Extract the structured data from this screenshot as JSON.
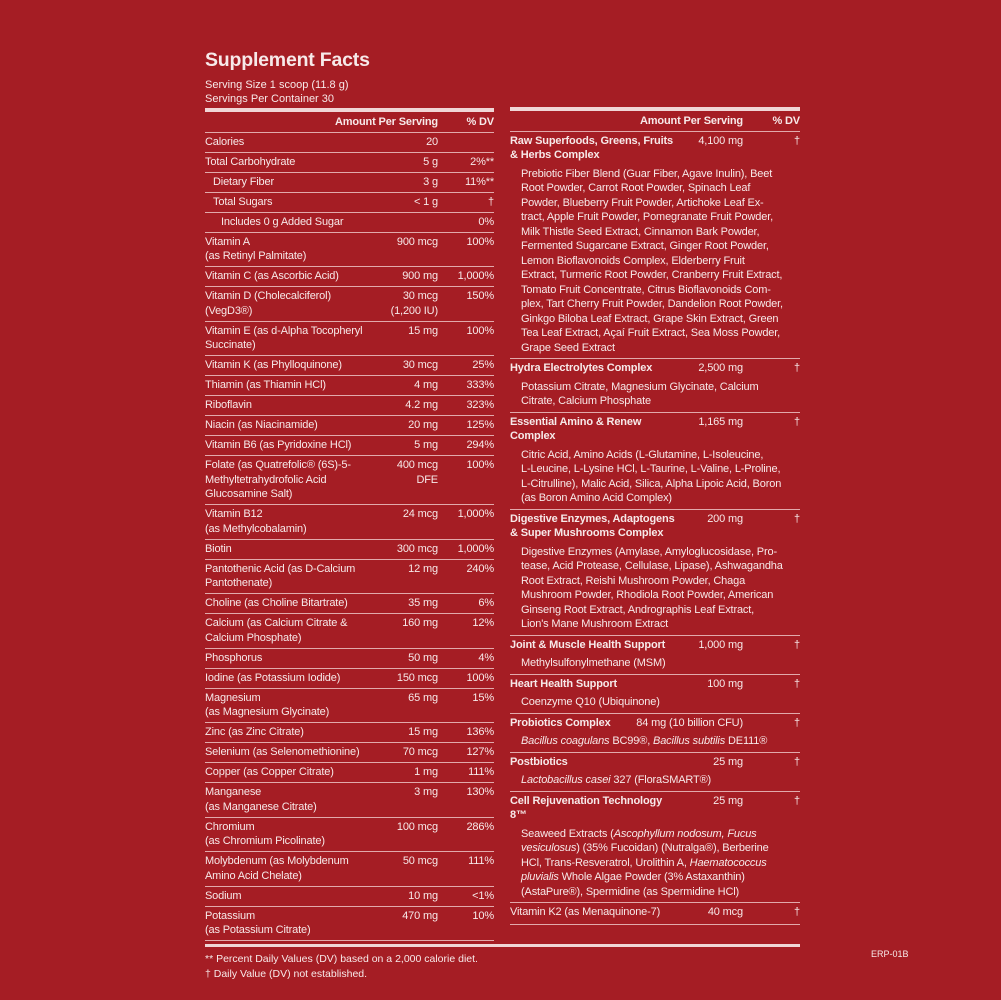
{
  "title": "Supplement Facts",
  "serving_size": "Serving Size 1 scoop (11.8 g)",
  "servings_per_container": "Servings Per Container 30",
  "header": {
    "amount": "Amount Per Serving",
    "dv": "% DV"
  },
  "left_rows": [
    {
      "name": [
        "Calories"
      ],
      "amount": [
        "20"
      ],
      "dv": ""
    },
    {
      "name": [
        "Total Carbohydrate"
      ],
      "amount": [
        "5 g"
      ],
      "dv": "2%**"
    },
    {
      "name": [
        "Dietary Fiber"
      ],
      "amount": [
        "3 g"
      ],
      "dv": "11%**",
      "indent": 1
    },
    {
      "name": [
        "Total Sugars"
      ],
      "amount": [
        "< 1 g"
      ],
      "dv": "†",
      "indent": 1
    },
    {
      "name": [
        "Includes 0 g Added Sugar"
      ],
      "amount": [
        ""
      ],
      "dv": "0%",
      "indent": 2
    },
    {
      "name": [
        "Vitamin A",
        "(as Retinyl Palmitate)"
      ],
      "amount": [
        "900 mcg"
      ],
      "dv": "100%"
    },
    {
      "name": [
        "Vitamin C (as Ascorbic Acid)"
      ],
      "amount": [
        "900 mg"
      ],
      "dv": "1,000%"
    },
    {
      "name": [
        "Vitamin D (Cholecalciferol)",
        "(VegD3®)"
      ],
      "amount": [
        "30 mcg",
        "(1,200 IU)"
      ],
      "dv": "150%"
    },
    {
      "name": [
        "Vitamin E (as d-Alpha Tocopheryl",
        "Succinate)"
      ],
      "amount": [
        "15 mg"
      ],
      "dv": "100%"
    },
    {
      "name": [
        "Vitamin K (as Phylloquinone)"
      ],
      "amount": [
        "30 mcg"
      ],
      "dv": "25%"
    },
    {
      "name": [
        "Thiamin (as Thiamin HCl)"
      ],
      "amount": [
        "4 mg"
      ],
      "dv": "333%"
    },
    {
      "name": [
        "Riboflavin"
      ],
      "amount": [
        "4.2 mg"
      ],
      "dv": "323%"
    },
    {
      "name": [
        "Niacin (as Niacinamide)"
      ],
      "amount": [
        "20 mg"
      ],
      "dv": "125%"
    },
    {
      "name": [
        "Vitamin B6 (as Pyridoxine HCl)"
      ],
      "amount": [
        "5 mg"
      ],
      "dv": "294%"
    },
    {
      "name": [
        "Folate (as Quatrefolic® (6S)-5-",
        "Methyltetrahydrofolic Acid",
        "Glucosamine Salt)"
      ],
      "amount": [
        "400 mcg",
        "DFE"
      ],
      "dv": "100%"
    },
    {
      "name": [
        "Vitamin B12",
        "(as Methylcobalamin)"
      ],
      "amount": [
        "24 mcg"
      ],
      "dv": "1,000%"
    },
    {
      "name": [
        "Biotin"
      ],
      "amount": [
        "300 mcg"
      ],
      "dv": "1,000%"
    },
    {
      "name": [
        "Pantothenic Acid (as D-Calcium",
        "Pantothenate)"
      ],
      "amount": [
        "12 mg"
      ],
      "dv": "240%"
    },
    {
      "name": [
        "Choline (as Choline Bitartrate)"
      ],
      "amount": [
        "35 mg"
      ],
      "dv": "6%"
    },
    {
      "name": [
        "Calcium (as Calcium Citrate &",
        "Calcium Phosphate)"
      ],
      "amount": [
        "160 mg"
      ],
      "dv": "12%"
    },
    {
      "name": [
        "Phosphorus"
      ],
      "amount": [
        "50 mg"
      ],
      "dv": "4%"
    },
    {
      "name": [
        "Iodine (as Potassium Iodide)"
      ],
      "amount": [
        "150 mcg"
      ],
      "dv": "100%"
    },
    {
      "name": [
        "Magnesium",
        "(as Magnesium Glycinate)"
      ],
      "amount": [
        "65 mg"
      ],
      "dv": "15%"
    },
    {
      "name": [
        "Zinc (as Zinc Citrate)"
      ],
      "amount": [
        "15 mg"
      ],
      "dv": "136%"
    },
    {
      "name": [
        "Selenium (as Selenomethionine)"
      ],
      "amount": [
        "70 mcg"
      ],
      "dv": "127%"
    },
    {
      "name": [
        "Copper (as Copper Citrate)"
      ],
      "amount": [
        "1 mg"
      ],
      "dv": "111%"
    },
    {
      "name": [
        "Manganese",
        "(as Manganese Citrate)"
      ],
      "amount": [
        "3 mg"
      ],
      "dv": "130%"
    },
    {
      "name": [
        "Chromium",
        "(as Chromium Picolinate)"
      ],
      "amount": [
        "100 mcg"
      ],
      "dv": "286%"
    },
    {
      "name": [
        "Molybdenum (as Molybdenum",
        "Amino Acid Chelate)"
      ],
      "amount": [
        "50 mcg"
      ],
      "dv": "111%"
    },
    {
      "name": [
        "Sodium"
      ],
      "amount": [
        "10 mg"
      ],
      "dv": "<1%"
    },
    {
      "name": [
        "Potassium",
        "(as Potassium Citrate)"
      ],
      "amount": [
        "470 mg"
      ],
      "dv": "10%"
    }
  ],
  "right_blocks": [
    {
      "name": [
        "Raw Superfoods, Greens, Fruits",
        "& Herbs Complex"
      ],
      "amount": "4,100 mg",
      "dv": "†",
      "desc": [
        [
          "Prebiotic Fiber Blend (Guar Fiber, Agave Inulin), Beet"
        ],
        [
          "Root Powder, Carrot Root Powder, Spinach Leaf"
        ],
        [
          "Powder, Blueberry Fruit Powder, Artichoke Leaf Ex-"
        ],
        [
          "tract, Apple Fruit Powder, Pomegranate Fruit Powder,"
        ],
        [
          "Milk Thistle Seed Extract, Cinnamon Bark Powder,"
        ],
        [
          "Fermented Sugarcane Extract, Ginger Root Powder,"
        ],
        [
          "Lemon Bioflavonoids Complex, Elderberry Fruit"
        ],
        [
          "Extract, Turmeric Root Powder, Cranberry Fruit Extract,"
        ],
        [
          "Tomato Fruit Concentrate, Citrus Bioflavonoids Com-"
        ],
        [
          "plex, Tart Cherry Fruit Powder, Dandelion Root Powder,"
        ],
        [
          "Ginkgo Biloba Leaf Extract, Grape Skin Extract, Green"
        ],
        [
          "Tea Leaf Extract, Açaí Fruit Extract, Sea Moss Powder,"
        ],
        [
          "Grape Seed Extract"
        ]
      ]
    },
    {
      "name": [
        "Hydra Electrolytes Complex"
      ],
      "amount": "2,500 mg",
      "dv": "†",
      "desc": [
        [
          "Potassium Citrate, Magnesium Glycinate, Calcium"
        ],
        [
          "Citrate, Calcium Phosphate"
        ]
      ]
    },
    {
      "name": [
        "Essential Amino & Renew Complex"
      ],
      "amount": "1,165 mg",
      "dv": "†",
      "desc": [
        [
          "Citric Acid, Amino Acids (L-Glutamine, L-Isoleucine,"
        ],
        [
          "L-Leucine, L-Lysine HCl, L-Taurine, L-Valine, L-Proline,"
        ],
        [
          "L-Citrulline), Malic Acid, Silica, Alpha Lipoic Acid, Boron"
        ],
        [
          "(as Boron Amino Acid Complex)"
        ]
      ]
    },
    {
      "name": [
        "Digestive Enzymes, Adaptogens",
        "& Super Mushrooms Complex"
      ],
      "amount": "200 mg",
      "dv": "†",
      "desc": [
        [
          "Digestive Enzymes (Amylase, Amyloglucosidase, Pro-"
        ],
        [
          "tease, Acid Protease, Cellulase, Lipase), Ashwagandha"
        ],
        [
          "Root Extract, Reishi Mushroom Powder, Chaga"
        ],
        [
          "Mushroom Powder, Rhodiola Root Powder, American"
        ],
        [
          "Ginseng Root Extract, Andrographis Leaf Extract,"
        ],
        [
          "Lion's Mane Mushroom Extract"
        ]
      ]
    },
    {
      "name": [
        "Joint & Muscle Health Support"
      ],
      "amount": "1,000 mg",
      "dv": "†",
      "desc": [
        [
          "Methylsulfonylmethane (MSM)"
        ]
      ]
    },
    {
      "name": [
        "Heart Health Support"
      ],
      "amount": "100 mg",
      "dv": "†",
      "desc": [
        [
          "Coenzyme Q10 (Ubiquinone)"
        ]
      ]
    },
    {
      "name": [
        "Probiotics Complex"
      ],
      "amount": "84 mg (10 billion CFU)",
      "dv": "†",
      "desc": [
        [
          "*Bacillus coagulans",
          " BC99®, ",
          "*Bacillus subtilis",
          " DE111®"
        ]
      ]
    },
    {
      "name": [
        "Postbiotics"
      ],
      "amount": "25 mg",
      "dv": "†",
      "desc": [
        [
          "*Lactobacillus casei",
          " 327 (FloraSMART®)"
        ]
      ]
    },
    {
      "name": [
        "Cell Rejuvenation Technology 8™"
      ],
      "amount": "25 mg",
      "dv": "†",
      "desc": [
        [
          "Seaweed Extracts (",
          "*Ascophyllum nodosum, Fucus"
        ],
        [
          "*vesiculosus",
          ") (35% Fucoidan) (Nutralga®), Berberine"
        ],
        [
          "HCl, Trans-Resveratrol, Urolithin A, ",
          "*Haematococcus"
        ],
        [
          "*pluvialis",
          " Whole Algae Powder (3% Astaxanthin)"
        ],
        [
          "(AstaPure®), Spermidine (as Spermidine HCl)"
        ]
      ]
    },
    {
      "name": [
        "Vitamin K2 (as Menaquinone-7)"
      ],
      "amount": "40 mcg",
      "dv": "†",
      "plain": true,
      "desc": []
    }
  ],
  "footnotes": [
    "** Percent Daily Values (DV) based on a 2,000 calorie diet.",
    "† Daily Value (DV) not established."
  ],
  "code": "ERP-01B",
  "colors": {
    "background": "#a51d24",
    "text": "#f7e9e9"
  }
}
